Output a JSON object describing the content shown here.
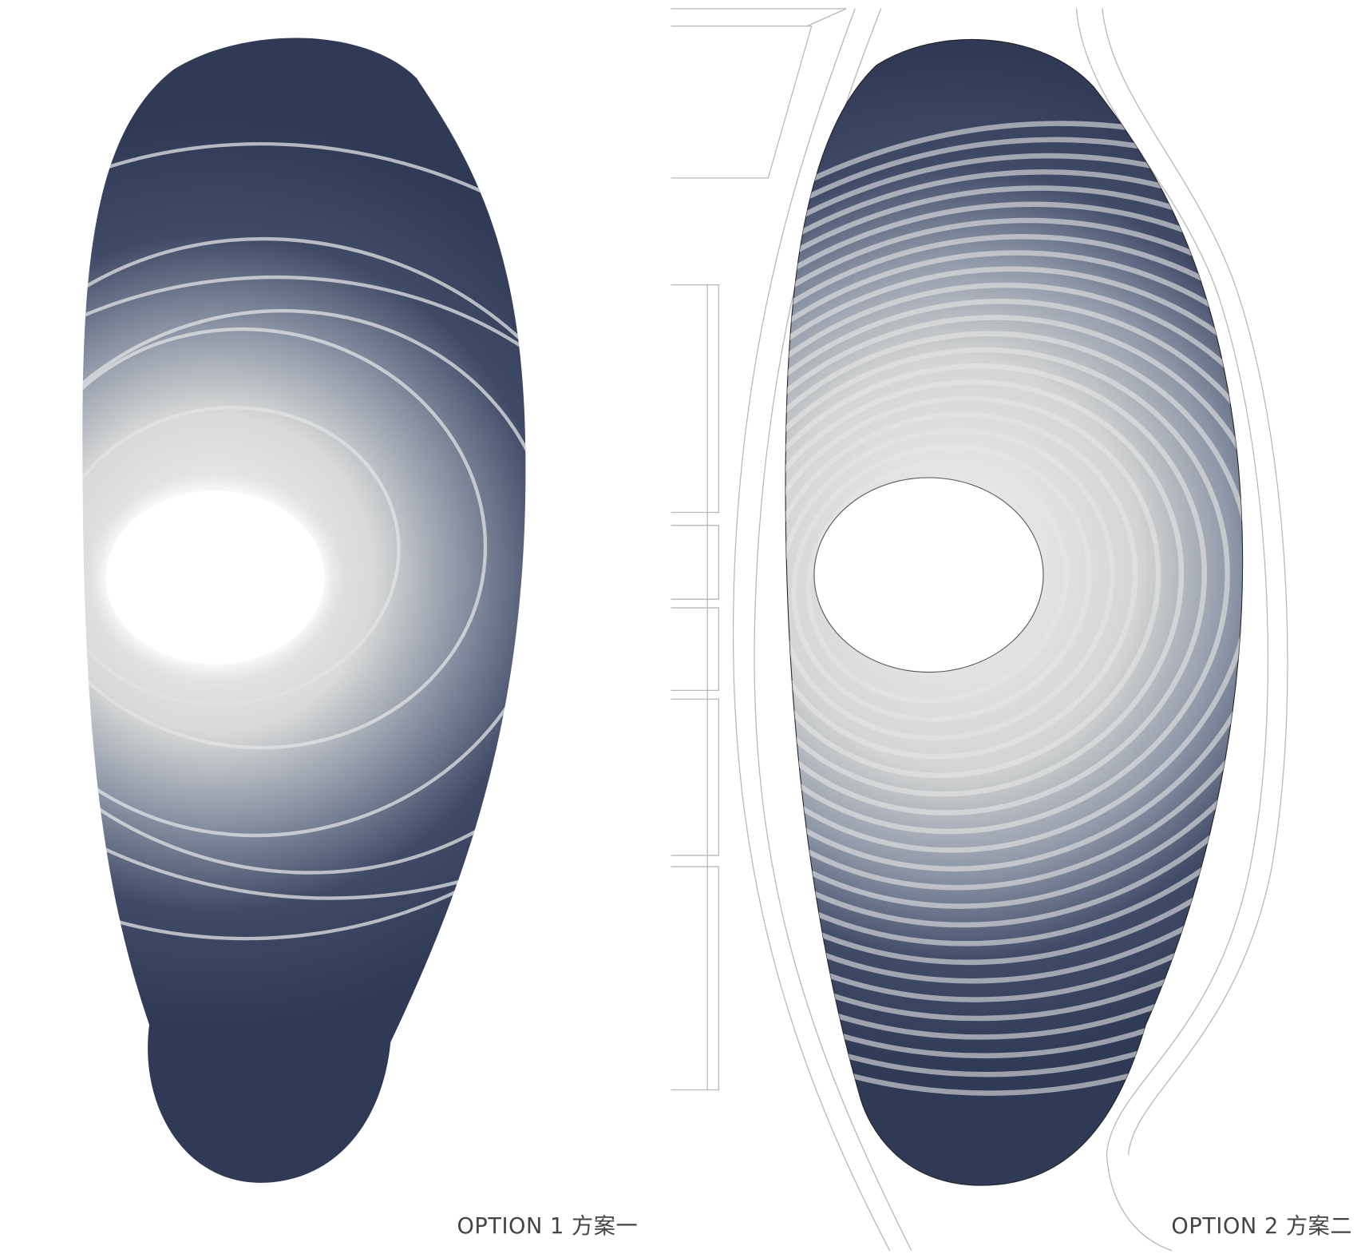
{
  "options": [
    {
      "label": "OPTION 1 方案一"
    },
    {
      "label": "OPTION 2 方案二"
    }
  ]
}
